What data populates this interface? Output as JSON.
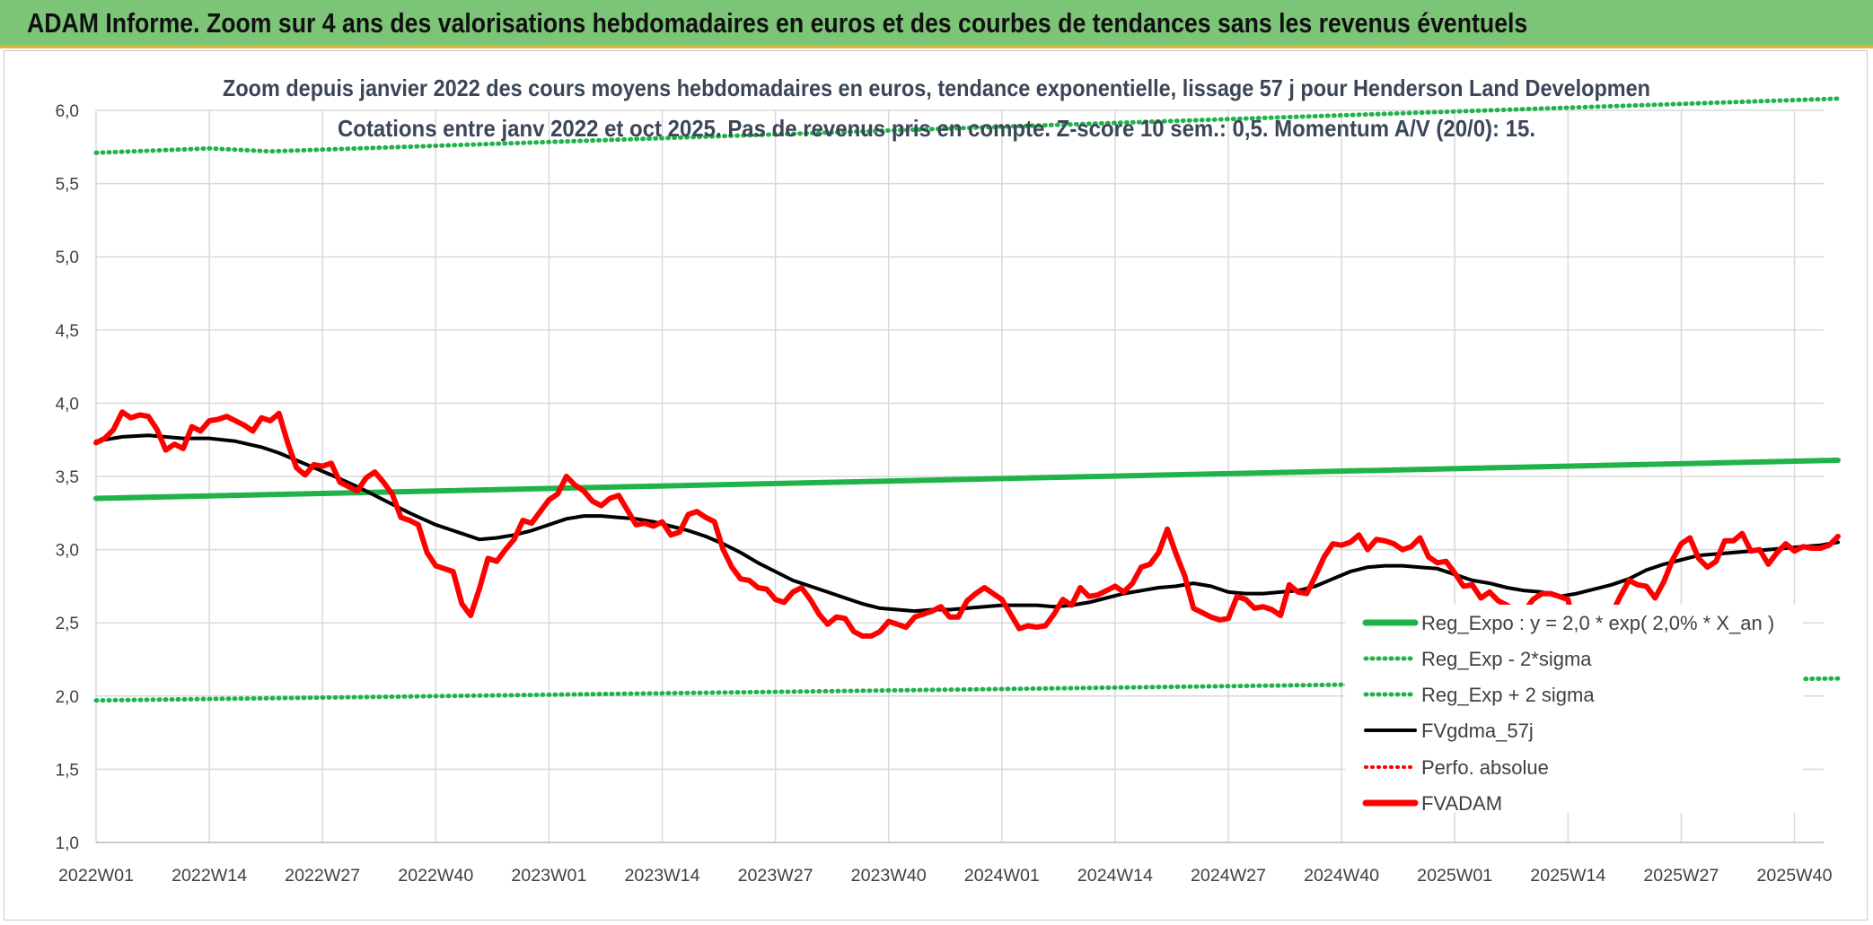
{
  "banner": {
    "title": "ADAM Informe. Zoom sur 4 ans des valorisations hebdomadaires en euros et des courbes de tendances sans les revenus éventuels"
  },
  "chart_data": {
    "type": "line",
    "title": "Zoom depuis janvier 2022 des cours moyens hebdomadaires en euros, tendance exponentielle, lissage 57 j pour Henderson Land Developmen",
    "subtitle": "Cotations entre janv 2022 et oct 2025. Pas de revenus pris en compte. Z-score 10 sem.: 0,5. Momentum A/V (20/0): 15.",
    "xlabel": "",
    "ylabel": "",
    "ylim": [
      1.0,
      6.0
    ],
    "yticks": [
      "1,0",
      "1,5",
      "2,0",
      "2,5",
      "3,0",
      "3,5",
      "4,0",
      "4,5",
      "5,0",
      "5,5",
      "6,0"
    ],
    "xticks": [
      "2022W01",
      "2022W14",
      "2022W27",
      "2022W40",
      "2023W01",
      "2023W14",
      "2023W27",
      "2023W40",
      "2024W01",
      "2024W14",
      "2024W27",
      "2024W40",
      "2025W01",
      "2025W14",
      "2025W27",
      "2025W40"
    ],
    "grid": true,
    "legend_position": "bottom-right",
    "x_unit": "week index (0 = 2022W01, 13 weeks per tick)",
    "series": [
      {
        "name": "Reg_Expo : y = 2,0 * exp( 2,0% *  X_an )",
        "color": "#1fb34a",
        "style": "solid",
        "points": [
          [
            0,
            3.35
          ],
          [
            200,
            3.61
          ]
        ]
      },
      {
        "name": "Reg_Exp - 2*sigma",
        "color": "#1fb34a",
        "style": "dotted",
        "points": [
          [
            0,
            1.97
          ],
          [
            200,
            2.12
          ]
        ]
      },
      {
        "name": "Reg_Exp + 2 sigma",
        "color": "#1fb34a",
        "style": "dotted",
        "points": [
          [
            0,
            5.71
          ],
          [
            13,
            5.74
          ],
          [
            20,
            5.72
          ],
          [
            200,
            6.08
          ]
        ]
      },
      {
        "name": "FVgdma_57j",
        "color": "#000000",
        "style": "solid",
        "points": [
          [
            0,
            3.74
          ],
          [
            3,
            3.77
          ],
          [
            6,
            3.78
          ],
          [
            10,
            3.76
          ],
          [
            13,
            3.76
          ],
          [
            16,
            3.74
          ],
          [
            19,
            3.7
          ],
          [
            21,
            3.66
          ],
          [
            23,
            3.61
          ],
          [
            25,
            3.56
          ],
          [
            27,
            3.51
          ],
          [
            30,
            3.43
          ],
          [
            33,
            3.34
          ],
          [
            36,
            3.25
          ],
          [
            39,
            3.17
          ],
          [
            42,
            3.11
          ],
          [
            44,
            3.07
          ],
          [
            46,
            3.08
          ],
          [
            48,
            3.1
          ],
          [
            50,
            3.13
          ],
          [
            52,
            3.17
          ],
          [
            54,
            3.21
          ],
          [
            56,
            3.23
          ],
          [
            58,
            3.23
          ],
          [
            60,
            3.22
          ],
          [
            62,
            3.21
          ],
          [
            64,
            3.19
          ],
          [
            66,
            3.16
          ],
          [
            68,
            3.13
          ],
          [
            70,
            3.09
          ],
          [
            72,
            3.04
          ],
          [
            74,
            2.98
          ],
          [
            76,
            2.91
          ],
          [
            78,
            2.85
          ],
          [
            80,
            2.79
          ],
          [
            82,
            2.75
          ],
          [
            84,
            2.71
          ],
          [
            86,
            2.67
          ],
          [
            88,
            2.63
          ],
          [
            90,
            2.6
          ],
          [
            92,
            2.59
          ],
          [
            94,
            2.58
          ],
          [
            96,
            2.59
          ],
          [
            98,
            2.59
          ],
          [
            100,
            2.6
          ],
          [
            102,
            2.61
          ],
          [
            104,
            2.62
          ],
          [
            106,
            2.62
          ],
          [
            108,
            2.62
          ],
          [
            110,
            2.61
          ],
          [
            112,
            2.62
          ],
          [
            114,
            2.64
          ],
          [
            116,
            2.67
          ],
          [
            118,
            2.7
          ],
          [
            120,
            2.72
          ],
          [
            122,
            2.74
          ],
          [
            124,
            2.75
          ],
          [
            126,
            2.77
          ],
          [
            128,
            2.75
          ],
          [
            130,
            2.71
          ],
          [
            132,
            2.7
          ],
          [
            134,
            2.7
          ],
          [
            136,
            2.71
          ],
          [
            138,
            2.72
          ],
          [
            140,
            2.75
          ],
          [
            142,
            2.8
          ],
          [
            144,
            2.85
          ],
          [
            146,
            2.88
          ],
          [
            148,
            2.89
          ],
          [
            150,
            2.89
          ],
          [
            152,
            2.88
          ],
          [
            154,
            2.87
          ],
          [
            156,
            2.83
          ],
          [
            158,
            2.79
          ],
          [
            160,
            2.77
          ],
          [
            162,
            2.74
          ],
          [
            164,
            2.72
          ],
          [
            166,
            2.71
          ],
          [
            168,
            2.68
          ],
          [
            170,
            2.7
          ],
          [
            172,
            2.73
          ],
          [
            174,
            2.76
          ],
          [
            176,
            2.8
          ],
          [
            178,
            2.86
          ],
          [
            180,
            2.9
          ],
          [
            182,
            2.93
          ],
          [
            184,
            2.96
          ],
          [
            186,
            2.97
          ],
          [
            188,
            2.98
          ],
          [
            190,
            2.99
          ],
          [
            192,
            3.0
          ],
          [
            194,
            3.01
          ],
          [
            196,
            3.02
          ],
          [
            198,
            3.03
          ],
          [
            200,
            3.05
          ]
        ]
      },
      {
        "name": "Perfo. absolue",
        "color": "#ff0000",
        "style": "dotted",
        "points": []
      },
      {
        "name": "FVADAM",
        "color": "#ff0000",
        "style": "solid",
        "points": [
          [
            0,
            3.73
          ],
          [
            1,
            3.76
          ],
          [
            2,
            3.82
          ],
          [
            3,
            3.94
          ],
          [
            4,
            3.9
          ],
          [
            5,
            3.92
          ],
          [
            6,
            3.91
          ],
          [
            7,
            3.82
          ],
          [
            8,
            3.68
          ],
          [
            9,
            3.72
          ],
          [
            10,
            3.69
          ],
          [
            11,
            3.84
          ],
          [
            12,
            3.81
          ],
          [
            13,
            3.88
          ],
          [
            14,
            3.89
          ],
          [
            15,
            3.91
          ],
          [
            16,
            3.88
          ],
          [
            17,
            3.85
          ],
          [
            18,
            3.81
          ],
          [
            19,
            3.9
          ],
          [
            20,
            3.88
          ],
          [
            21,
            3.93
          ],
          [
            22,
            3.73
          ],
          [
            23,
            3.56
          ],
          [
            24,
            3.51
          ],
          [
            25,
            3.58
          ],
          [
            26,
            3.57
          ],
          [
            27,
            3.59
          ],
          [
            28,
            3.46
          ],
          [
            29,
            3.43
          ],
          [
            30,
            3.4
          ],
          [
            31,
            3.49
          ],
          [
            32,
            3.53
          ],
          [
            33,
            3.46
          ],
          [
            34,
            3.38
          ],
          [
            35,
            3.22
          ],
          [
            36,
            3.2
          ],
          [
            37,
            3.17
          ],
          [
            38,
            2.98
          ],
          [
            39,
            2.89
          ],
          [
            40,
            2.87
          ],
          [
            41,
            2.85
          ],
          [
            42,
            2.63
          ],
          [
            43,
            2.55
          ],
          [
            44,
            2.73
          ],
          [
            45,
            2.94
          ],
          [
            46,
            2.92
          ],
          [
            47,
            3.0
          ],
          [
            48,
            3.07
          ],
          [
            49,
            3.2
          ],
          [
            50,
            3.18
          ],
          [
            51,
            3.26
          ],
          [
            52,
            3.34
          ],
          [
            53,
            3.38
          ],
          [
            54,
            3.5
          ],
          [
            55,
            3.44
          ],
          [
            56,
            3.4
          ],
          [
            57,
            3.33
          ],
          [
            58,
            3.3
          ],
          [
            59,
            3.35
          ],
          [
            60,
            3.37
          ],
          [
            61,
            3.27
          ],
          [
            62,
            3.17
          ],
          [
            63,
            3.18
          ],
          [
            64,
            3.16
          ],
          [
            65,
            3.19
          ],
          [
            66,
            3.1
          ],
          [
            67,
            3.12
          ],
          [
            68,
            3.24
          ],
          [
            69,
            3.26
          ],
          [
            70,
            3.22
          ],
          [
            71,
            3.19
          ],
          [
            72,
            3.0
          ],
          [
            73,
            2.88
          ],
          [
            74,
            2.8
          ],
          [
            75,
            2.79
          ],
          [
            76,
            2.74
          ],
          [
            77,
            2.73
          ],
          [
            78,
            2.66
          ],
          [
            79,
            2.64
          ],
          [
            80,
            2.71
          ],
          [
            81,
            2.74
          ],
          [
            82,
            2.66
          ],
          [
            83,
            2.56
          ],
          [
            84,
            2.49
          ],
          [
            85,
            2.54
          ],
          [
            86,
            2.53
          ],
          [
            87,
            2.44
          ],
          [
            88,
            2.41
          ],
          [
            89,
            2.41
          ],
          [
            90,
            2.44
          ],
          [
            91,
            2.51
          ],
          [
            92,
            2.49
          ],
          [
            93,
            2.47
          ],
          [
            94,
            2.54
          ],
          [
            95,
            2.56
          ],
          [
            96,
            2.58
          ],
          [
            97,
            2.61
          ],
          [
            98,
            2.54
          ],
          [
            99,
            2.54
          ],
          [
            100,
            2.65
          ],
          [
            101,
            2.7
          ],
          [
            102,
            2.74
          ],
          [
            103,
            2.7
          ],
          [
            104,
            2.66
          ],
          [
            105,
            2.56
          ],
          [
            106,
            2.46
          ],
          [
            107,
            2.48
          ],
          [
            108,
            2.47
          ],
          [
            109,
            2.48
          ],
          [
            110,
            2.56
          ],
          [
            111,
            2.66
          ],
          [
            112,
            2.62
          ],
          [
            113,
            2.74
          ],
          [
            114,
            2.68
          ],
          [
            115,
            2.69
          ],
          [
            116,
            2.72
          ],
          [
            117,
            2.75
          ],
          [
            118,
            2.71
          ],
          [
            119,
            2.77
          ],
          [
            120,
            2.88
          ],
          [
            121,
            2.9
          ],
          [
            122,
            2.98
          ],
          [
            123,
            3.14
          ],
          [
            124,
            2.97
          ],
          [
            125,
            2.82
          ],
          [
            126,
            2.6
          ],
          [
            127,
            2.57
          ],
          [
            128,
            2.54
          ],
          [
            129,
            2.52
          ],
          [
            130,
            2.53
          ],
          [
            131,
            2.68
          ],
          [
            132,
            2.66
          ],
          [
            133,
            2.6
          ],
          [
            134,
            2.61
          ],
          [
            135,
            2.59
          ],
          [
            136,
            2.55
          ],
          [
            137,
            2.76
          ],
          [
            138,
            2.71
          ],
          [
            139,
            2.7
          ],
          [
            140,
            2.82
          ],
          [
            141,
            2.95
          ],
          [
            142,
            3.04
          ],
          [
            143,
            3.03
          ],
          [
            144,
            3.05
          ],
          [
            145,
            3.1
          ],
          [
            146,
            3.0
          ],
          [
            147,
            3.07
          ],
          [
            148,
            3.06
          ],
          [
            149,
            3.04
          ],
          [
            150,
            3.0
          ],
          [
            151,
            3.02
          ],
          [
            152,
            3.08
          ],
          [
            153,
            2.95
          ],
          [
            154,
            2.91
          ],
          [
            155,
            2.92
          ],
          [
            156,
            2.84
          ],
          [
            157,
            2.75
          ],
          [
            158,
            2.76
          ],
          [
            159,
            2.67
          ],
          [
            160,
            2.71
          ],
          [
            161,
            2.65
          ],
          [
            162,
            2.62
          ],
          [
            163,
            2.58
          ],
          [
            164,
            2.58
          ],
          [
            165,
            2.66
          ],
          [
            166,
            2.7
          ],
          [
            167,
            2.7
          ],
          [
            168,
            2.68
          ],
          [
            169,
            2.66
          ],
          [
            170,
            2.39
          ],
          [
            171,
            2.35
          ],
          [
            172,
            2.4
          ],
          [
            173,
            2.44
          ],
          [
            174,
            2.56
          ],
          [
            175,
            2.68
          ],
          [
            176,
            2.79
          ],
          [
            177,
            2.76
          ],
          [
            178,
            2.75
          ],
          [
            179,
            2.67
          ],
          [
            180,
            2.78
          ],
          [
            181,
            2.93
          ],
          [
            182,
            3.04
          ],
          [
            183,
            3.08
          ],
          [
            184,
            2.94
          ],
          [
            185,
            2.88
          ],
          [
            186,
            2.92
          ],
          [
            187,
            3.06
          ],
          [
            188,
            3.06
          ],
          [
            189,
            3.11
          ],
          [
            190,
            2.99
          ],
          [
            191,
            3.0
          ],
          [
            192,
            2.9
          ],
          [
            193,
            2.98
          ],
          [
            194,
            3.04
          ],
          [
            195,
            2.99
          ],
          [
            196,
            3.02
          ],
          [
            197,
            3.01
          ],
          [
            198,
            3.01
          ],
          [
            199,
            3.03
          ],
          [
            200,
            3.09
          ]
        ]
      }
    ]
  }
}
